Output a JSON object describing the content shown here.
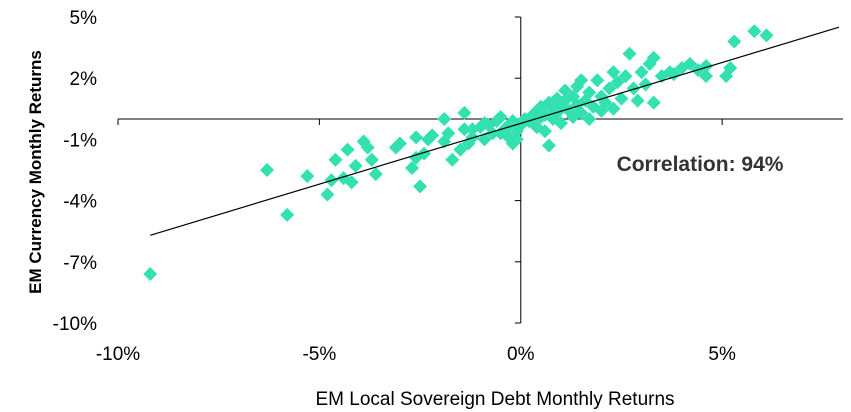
{
  "chart_data": {
    "type": "scatter",
    "xlabel": "EM Local Sovereign Debt Monthly Returns",
    "ylabel": "EM Currency Monthly Returns",
    "annotation": "Correlation: 94%",
    "xlim": [
      -10,
      8
    ],
    "ylim": [
      -10,
      5
    ],
    "x_ticks": [
      {
        "value": -10,
        "label": "-10%"
      },
      {
        "value": -5,
        "label": "-5%"
      },
      {
        "value": 0,
        "label": "0%"
      },
      {
        "value": 5,
        "label": "5%"
      }
    ],
    "y_ticks": [
      {
        "value": 5,
        "label": "5%"
      },
      {
        "value": 2,
        "label": "2%"
      },
      {
        "value": -1,
        "label": "-1%"
      },
      {
        "value": -4,
        "label": "-4%"
      },
      {
        "value": -7,
        "label": "-7%"
      },
      {
        "value": -10,
        "label": "-10%"
      }
    ],
    "trendline": {
      "x": [
        -9.2,
        7.9
      ],
      "y": [
        -5.7,
        4.5
      ]
    },
    "marker_color": "#33e0b0",
    "line_color": "#000000",
    "points": [
      [
        -9.2,
        -7.6
      ],
      [
        -6.3,
        -2.5
      ],
      [
        -5.8,
        -4.7
      ],
      [
        -5.3,
        -2.8
      ],
      [
        -4.8,
        -3.7
      ],
      [
        -4.7,
        -3.0
      ],
      [
        -4.6,
        -2.0
      ],
      [
        -4.4,
        -2.9
      ],
      [
        -4.3,
        -1.5
      ],
      [
        -4.2,
        -3.1
      ],
      [
        -4.1,
        -2.3
      ],
      [
        -3.9,
        -1.1
      ],
      [
        -3.8,
        -1.4
      ],
      [
        -3.7,
        -2.0
      ],
      [
        -3.6,
        -2.7
      ],
      [
        -3.1,
        -1.4
      ],
      [
        -3.0,
        -1.2
      ],
      [
        -2.7,
        -2.4
      ],
      [
        -2.6,
        -0.9
      ],
      [
        -2.6,
        -1.9
      ],
      [
        -2.5,
        -3.3
      ],
      [
        -2.4,
        -1.7
      ],
      [
        -2.3,
        -1.0
      ],
      [
        -2.2,
        -0.8
      ],
      [
        -1.9,
        0.0
      ],
      [
        -1.9,
        -1.1
      ],
      [
        -1.8,
        -0.7
      ],
      [
        -1.7,
        -2.0
      ],
      [
        -1.5,
        -1.5
      ],
      [
        -1.4,
        -0.5
      ],
      [
        -1.4,
        0.3
      ],
      [
        -1.3,
        -1.2
      ],
      [
        -1.2,
        -0.5
      ],
      [
        -1.2,
        -0.9
      ],
      [
        -1.0,
        -0.4
      ],
      [
        -0.9,
        -0.2
      ],
      [
        -0.9,
        -1.0
      ],
      [
        -0.8,
        -0.3
      ],
      [
        -0.7,
        -0.7
      ],
      [
        -0.6,
        -0.1
      ],
      [
        -0.5,
        -0.7
      ],
      [
        -0.5,
        0.1
      ],
      [
        -0.4,
        -0.5
      ],
      [
        -0.3,
        -0.3
      ],
      [
        -0.3,
        -0.9
      ],
      [
        -0.2,
        -0.1
      ],
      [
        -0.2,
        -1.2
      ],
      [
        -0.1,
        -0.6
      ],
      [
        0.0,
        -0.3
      ],
      [
        -0.1,
        -1.0
      ],
      [
        0.1,
        0.0
      ],
      [
        0.2,
        -0.1
      ],
      [
        0.3,
        0.2
      ],
      [
        0.3,
        -0.2
      ],
      [
        0.4,
        0.4
      ],
      [
        0.4,
        -0.4
      ],
      [
        0.5,
        0.6
      ],
      [
        0.5,
        0.1
      ],
      [
        0.6,
        0.2
      ],
      [
        0.6,
        -0.6
      ],
      [
        0.7,
        -1.3
      ],
      [
        0.7,
        0.8
      ],
      [
        0.8,
        0.5
      ],
      [
        0.8,
        0.0
      ],
      [
        0.9,
        0.3
      ],
      [
        0.9,
        1.0
      ],
      [
        1.0,
        0.6
      ],
      [
        1.0,
        -0.2
      ],
      [
        1.1,
        0.9
      ],
      [
        1.1,
        1.4
      ],
      [
        1.2,
        0.4
      ],
      [
        1.3,
        1.1
      ],
      [
        1.3,
        0.1
      ],
      [
        1.4,
        1.6
      ],
      [
        1.4,
        0.7
      ],
      [
        1.5,
        1.9
      ],
      [
        1.5,
        0.3
      ],
      [
        1.6,
        0.9
      ],
      [
        1.7,
        0.0
      ],
      [
        1.7,
        1.3
      ],
      [
        1.8,
        0.6
      ],
      [
        1.9,
        1.9
      ],
      [
        2.0,
        1.1
      ],
      [
        2.0,
        0.4
      ],
      [
        2.1,
        0.8
      ],
      [
        2.2,
        1.5
      ],
      [
        2.3,
        2.3
      ],
      [
        2.3,
        0.5
      ],
      [
        2.4,
        1.8
      ],
      [
        2.5,
        1.0
      ],
      [
        2.6,
        2.1
      ],
      [
        2.7,
        3.2
      ],
      [
        2.8,
        1.5
      ],
      [
        2.9,
        0.9
      ],
      [
        3.0,
        2.3
      ],
      [
        3.1,
        1.7
      ],
      [
        3.2,
        2.7
      ],
      [
        3.3,
        3.0
      ],
      [
        3.3,
        0.8
      ],
      [
        3.5,
        2.1
      ],
      [
        3.7,
        2.3
      ],
      [
        3.8,
        2.2
      ],
      [
        4.0,
        2.5
      ],
      [
        4.2,
        2.7
      ],
      [
        4.4,
        2.4
      ],
      [
        4.6,
        2.6
      ],
      [
        4.6,
        2.1
      ],
      [
        5.1,
        2.1
      ],
      [
        5.2,
        2.5
      ],
      [
        5.3,
        3.8
      ],
      [
        5.8,
        4.3
      ],
      [
        6.1,
        4.1
      ]
    ]
  }
}
